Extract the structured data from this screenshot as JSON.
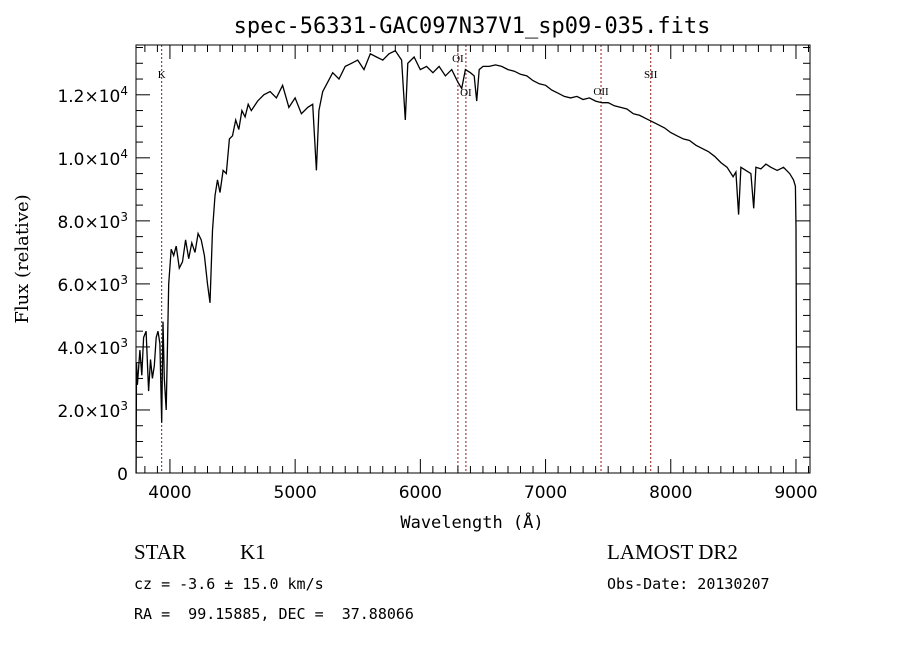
{
  "chart_data": {
    "type": "line",
    "title": "spec-56331-GAC097N37V1_sp09-035.fits",
    "xlabel": "Wavelength (Å)",
    "ylabel": "Flux (relative)",
    "xlim": [
      3729,
      9112
    ],
    "ylim": [
      0,
      13580
    ],
    "xticks": [
      {
        "v": 4000,
        "label": "4000"
      },
      {
        "v": 5000,
        "label": "5000"
      },
      {
        "v": 6000,
        "label": "6000"
      },
      {
        "v": 7000,
        "label": "7000"
      },
      {
        "v": 8000,
        "label": "8000"
      },
      {
        "v": 9000,
        "label": "9000"
      }
    ],
    "yticks": [
      {
        "v": 0,
        "mant": "0",
        "exp": ""
      },
      {
        "v": 2000,
        "mant": "2.0×10",
        "exp": "3"
      },
      {
        "v": 4000,
        "mant": "4.0×10",
        "exp": "3"
      },
      {
        "v": 6000,
        "mant": "6.0×10",
        "exp": "3"
      },
      {
        "v": 8000,
        "mant": "8.0×10",
        "exp": "3"
      },
      {
        "v": 10000,
        "mant": "1.0×10",
        "exp": "4"
      },
      {
        "v": 12000,
        "mant": "1.2×10",
        "exp": "4"
      }
    ],
    "grid": false,
    "series": [
      {
        "name": "spectrum",
        "color": "#000000",
        "x": [
          3730,
          3733,
          3740,
          3760,
          3775,
          3790,
          3810,
          3830,
          3845,
          3860,
          3875,
          3890,
          3905,
          3920,
          3934,
          3945,
          3955,
          3970,
          3990,
          4010,
          4030,
          4050,
          4075,
          4100,
          4125,
          4150,
          4175,
          4200,
          4225,
          4250,
          4275,
          4300,
          4320,
          4340,
          4360,
          4380,
          4400,
          4425,
          4450,
          4475,
          4500,
          4525,
          4550,
          4575,
          4600,
          4625,
          4650,
          4700,
          4750,
          4800,
          4850,
          4900,
          4950,
          5000,
          5050,
          5100,
          5140,
          5170,
          5190,
          5220,
          5260,
          5300,
          5350,
          5400,
          5450,
          5500,
          5550,
          5600,
          5650,
          5700,
          5750,
          5800,
          5850,
          5880,
          5900,
          5950,
          6000,
          6050,
          6100,
          6150,
          6200,
          6250,
          6300,
          6330,
          6360,
          6400,
          6430,
          6450,
          6470,
          6500,
          6550,
          6600,
          6650,
          6700,
          6750,
          6800,
          6850,
          6900,
          6950,
          7000,
          7050,
          7100,
          7150,
          7200,
          7250,
          7300,
          7350,
          7400,
          7450,
          7500,
          7550,
          7600,
          7650,
          7700,
          7750,
          7800,
          7850,
          7900,
          7950,
          8000,
          8050,
          8100,
          8150,
          8200,
          8250,
          8300,
          8350,
          8400,
          8450,
          8498,
          8520,
          8542,
          8560,
          8600,
          8640,
          8662,
          8680,
          8720,
          8760,
          8800,
          8850,
          8900,
          8950,
          8980,
          8995,
          9000,
          9005
        ],
        "y": [
          0,
          3500,
          2800,
          3900,
          3100,
          4300,
          4500,
          2600,
          3600,
          3000,
          3400,
          4300,
          4500,
          4100,
          1600,
          4800,
          3000,
          2000,
          6000,
          7100,
          6900,
          7200,
          6500,
          6700,
          7400,
          6800,
          7300,
          7000,
          7600,
          7400,
          6900,
          6000,
          5400,
          7700,
          8800,
          9300,
          8900,
          9600,
          9500,
          10600,
          10700,
          11200,
          10900,
          11500,
          11300,
          11700,
          11500,
          11800,
          12000,
          12100,
          11900,
          12300,
          11600,
          11900,
          11400,
          11600,
          11700,
          9600,
          11500,
          12100,
          12400,
          12700,
          12500,
          12900,
          13000,
          13100,
          12800,
          13300,
          13200,
          13100,
          13300,
          13400,
          13100,
          11200,
          13000,
          13200,
          12800,
          12900,
          12700,
          12900,
          12600,
          12800,
          12400,
          12200,
          12800,
          12700,
          12600,
          11800,
          12800,
          12900,
          12900,
          12950,
          12900,
          12800,
          12750,
          12650,
          12600,
          12450,
          12350,
          12300,
          12150,
          12050,
          11950,
          11900,
          11950,
          11850,
          11900,
          11800,
          11750,
          11750,
          11650,
          11600,
          11550,
          11400,
          11350,
          11250,
          11150,
          11050,
          10950,
          10800,
          10700,
          10600,
          10550,
          10400,
          10300,
          10200,
          10050,
          9850,
          9700,
          9400,
          9550,
          8200,
          9700,
          9600,
          9500,
          8400,
          9700,
          9650,
          9800,
          9700,
          9600,
          9700,
          9500,
          9300,
          9100,
          7800,
          2000
        ]
      }
    ],
    "line_markers": [
      {
        "label": "K",
        "wavelength": 3934,
        "label_pos": "top"
      },
      {
        "label": "OI",
        "wavelength": 6300,
        "label_pos": "upper"
      },
      {
        "label": "OI",
        "wavelength": 6364,
        "label_pos": "lower"
      },
      {
        "label": "OII",
        "wavelength": 7443,
        "label_pos": "lower"
      },
      {
        "label": "SII",
        "wavelength": 7840,
        "label_pos": "upper"
      }
    ],
    "marker_color": "#8b1a1a"
  },
  "footer": {
    "class": "STAR",
    "subclass": "K1",
    "survey": "LAMOST DR2",
    "cz": "cz = -3.6 ± 15.0 km/s",
    "obs_date": "Obs-Date: 20130207",
    "coords": "RA =  99.15885, DEC =  37.88066"
  }
}
